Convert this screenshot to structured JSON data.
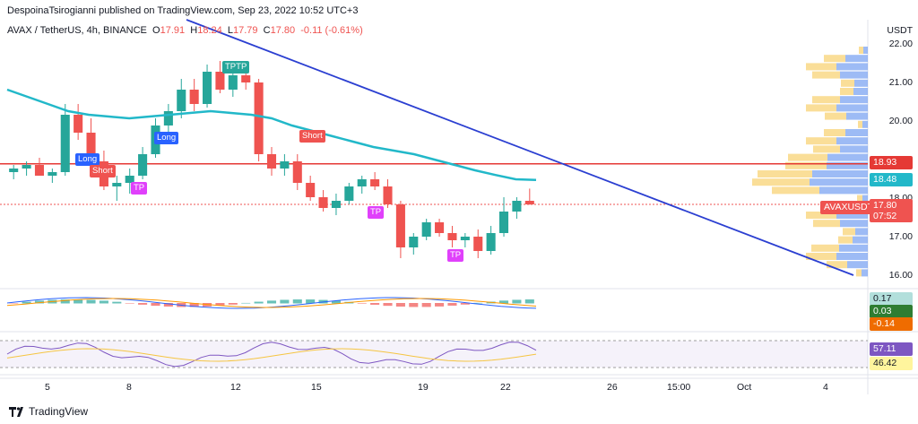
{
  "attribution": "DespoinaTsirogianni published on TradingView.com, Sep 23, 2022 10:52 UTC+3",
  "symbol": {
    "name": "AVAX / TetherUS, 4h, BINANCE",
    "o_label": "O",
    "o": "17.91",
    "h_label": "H",
    "h": "18.24",
    "l_label": "L",
    "l": "17.79",
    "c_label": "C",
    "c": "17.80",
    "change": "-0.11 (-0.61%)"
  },
  "price_axis": {
    "currency": "USDT",
    "ticks": [
      "22.00",
      "21.00",
      "20.00",
      "19.00",
      "18.00",
      "17.00",
      "16.00"
    ]
  },
  "badges": {
    "resistance": "18.93",
    "ma": "18.48",
    "pair": "AVAXUSDT",
    "last": "17.80",
    "countdown": "07:52",
    "macd_hist": "0.17",
    "macd": "0.03",
    "macd_signal": "-0.14",
    "rsi": "57.11",
    "rsi_ma": "46.42"
  },
  "time_axis": [
    "5",
    "8",
    "12",
    "15",
    "19",
    "22",
    "26",
    "15:00",
    "Oct",
    "4"
  ],
  "signals": [
    "TPTP",
    "Long",
    "Long",
    "Short",
    "TP",
    "Short",
    "TP",
    "TP"
  ],
  "footer": "TradingView",
  "colors": {
    "up": "#26a69a",
    "down": "#ef5350",
    "ma": "#22b8c9",
    "trend": "#2b3fd1",
    "resistance": "#e53935",
    "volume_up": "#5b8def",
    "volume_down": "#f6c244",
    "rsi": "#7e57c2",
    "rsi_ma": "#f5c542",
    "macd": "#2962ff"
  },
  "chart_data": {
    "type": "candlestick",
    "timeframe": "4h",
    "ylim": [
      15.8,
      22.3
    ],
    "overlays": {
      "resistance_level": 18.93,
      "ma_last": 18.48
    },
    "candles_ohlc_sampled": [
      [
        18.7,
        18.9,
        18.5,
        18.8
      ],
      [
        18.8,
        19.0,
        18.6,
        18.9
      ],
      [
        18.9,
        19.1,
        18.7,
        18.6
      ],
      [
        18.6,
        18.8,
        18.4,
        18.7
      ],
      [
        18.7,
        20.6,
        18.6,
        20.3
      ],
      [
        20.3,
        20.6,
        19.6,
        19.8
      ],
      [
        19.8,
        20.2,
        18.9,
        19.0
      ],
      [
        19.0,
        19.3,
        18.2,
        18.3
      ],
      [
        18.3,
        18.6,
        17.9,
        18.4
      ],
      [
        18.4,
        18.8,
        18.1,
        18.6
      ],
      [
        18.6,
        19.4,
        18.5,
        19.2
      ],
      [
        19.2,
        20.2,
        19.1,
        20.0
      ],
      [
        20.0,
        20.6,
        19.8,
        20.4
      ],
      [
        20.4,
        21.3,
        20.2,
        21.0
      ],
      [
        21.0,
        21.3,
        20.4,
        20.6
      ],
      [
        20.6,
        21.7,
        20.5,
        21.5
      ],
      [
        21.5,
        21.8,
        20.9,
        21.0
      ],
      [
        21.0,
        21.6,
        20.8,
        21.4
      ],
      [
        21.4,
        21.8,
        21.0,
        21.2
      ],
      [
        21.2,
        21.3,
        19.0,
        19.2
      ],
      [
        19.2,
        19.4,
        18.6,
        18.8
      ],
      [
        18.8,
        19.2,
        18.6,
        19.0
      ],
      [
        19.0,
        19.2,
        18.2,
        18.4
      ],
      [
        18.4,
        18.6,
        17.9,
        18.0
      ],
      [
        18.0,
        18.2,
        17.6,
        17.7
      ],
      [
        17.7,
        18.1,
        17.5,
        17.9
      ],
      [
        17.9,
        18.4,
        17.8,
        18.3
      ],
      [
        18.3,
        18.6,
        18.1,
        18.5
      ],
      [
        18.5,
        18.7,
        18.2,
        18.3
      ],
      [
        18.3,
        18.5,
        17.7,
        17.8
      ],
      [
        17.8,
        17.9,
        16.3,
        16.6
      ],
      [
        16.6,
        17.0,
        16.4,
        16.9
      ],
      [
        16.9,
        17.4,
        16.8,
        17.3
      ],
      [
        17.3,
        17.4,
        16.9,
        17.0
      ],
      [
        17.0,
        17.2,
        16.6,
        16.8
      ],
      [
        16.8,
        17.0,
        16.6,
        16.9
      ],
      [
        16.9,
        17.1,
        16.3,
        16.5
      ],
      [
        16.5,
        17.2,
        16.4,
        17.0
      ],
      [
        17.0,
        18.0,
        16.9,
        17.6
      ],
      [
        17.6,
        18.0,
        17.4,
        17.9
      ],
      [
        17.9,
        18.24,
        17.79,
        17.8
      ]
    ],
    "rsi": {
      "last": 57.11,
      "ma_last": 46.42,
      "levels": [
        70,
        30
      ]
    },
    "macd": {
      "hist_last": 0.17,
      "macd_last": 0.03,
      "signal_last": -0.14
    }
  }
}
